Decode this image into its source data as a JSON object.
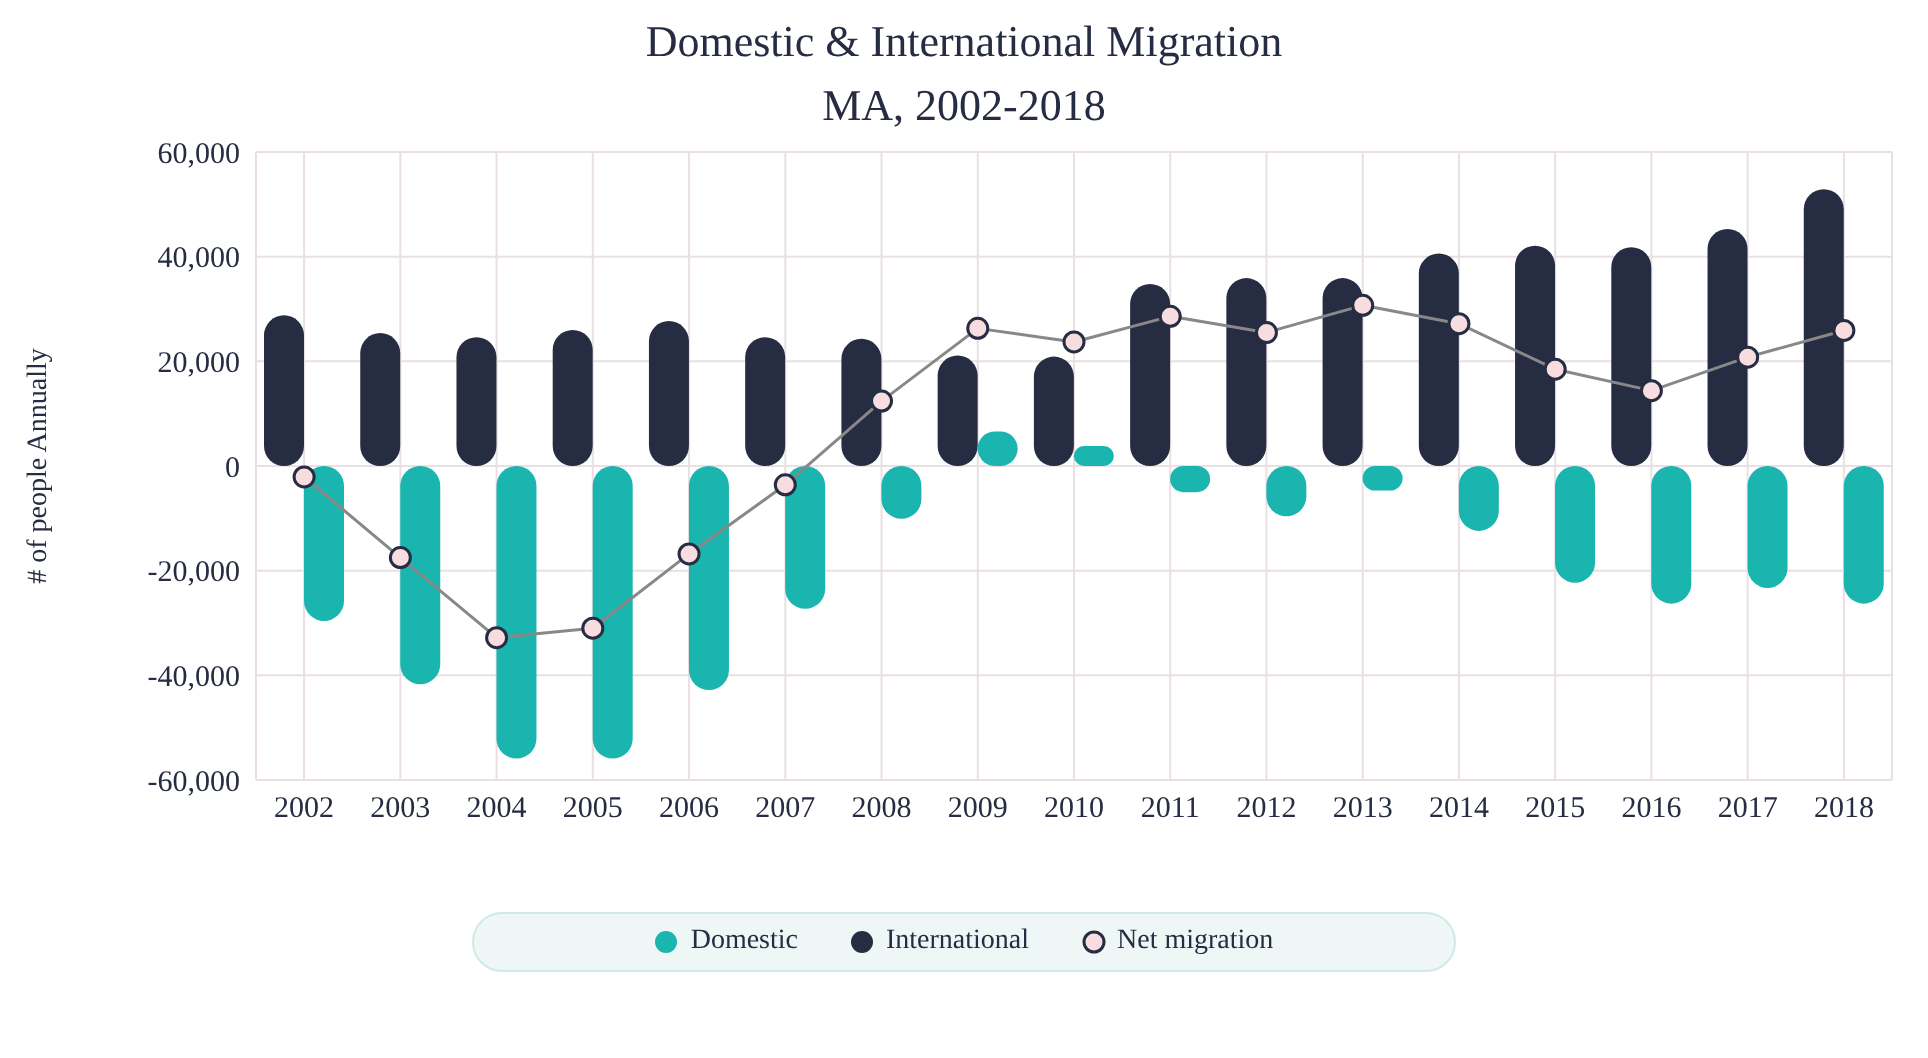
{
  "chart_data": {
    "type": "bar",
    "title": "Domestic & International Migration",
    "subtitle": "MA, 2002-2018",
    "ylabel": "# of people Annually",
    "categories": [
      "2002",
      "2003",
      "2004",
      "2005",
      "2006",
      "2007",
      "2008",
      "2009",
      "2010",
      "2011",
      "2012",
      "2013",
      "2014",
      "2015",
      "2016",
      "2017",
      "2018"
    ],
    "series": [
      {
        "name": "International",
        "color": "#262c41",
        "values": [
          28800,
          25400,
          24600,
          26000,
          27700,
          24600,
          24300,
          21100,
          20900,
          34800,
          35900,
          35900,
          40600,
          42100,
          41800,
          45300,
          52900
        ]
      },
      {
        "name": "Domestic",
        "color": "#1bb5b0",
        "values": [
          -29600,
          -41700,
          -55900,
          -55900,
          -42800,
          -27300,
          -10100,
          6600,
          3800,
          -5000,
          -9600,
          -4700,
          -12400,
          -22300,
          -26300,
          -23300,
          -26300
        ]
      },
      {
        "name": "Net migration",
        "type": "line",
        "color": "#888888",
        "values": [
          -2100,
          -17500,
          -32800,
          -31000,
          -16800,
          -3600,
          12400,
          26300,
          23700,
          28600,
          25500,
          30700,
          27200,
          18500,
          14400,
          20800,
          25900
        ]
      }
    ],
    "ylim": [
      -60000,
      60000
    ],
    "yticks": [
      {
        "value": -60000,
        "label": "-60,000"
      },
      {
        "value": -40000,
        "label": "-40,000"
      },
      {
        "value": -20000,
        "label": "-20,000"
      },
      0,
      {
        "value": 20000,
        "label": "20,000"
      },
      {
        "value": 40000,
        "label": "40,000"
      },
      {
        "value": 60000,
        "label": "60,000"
      }
    ],
    "grid": true,
    "legend": "bottom",
    "marker": "circle"
  }
}
